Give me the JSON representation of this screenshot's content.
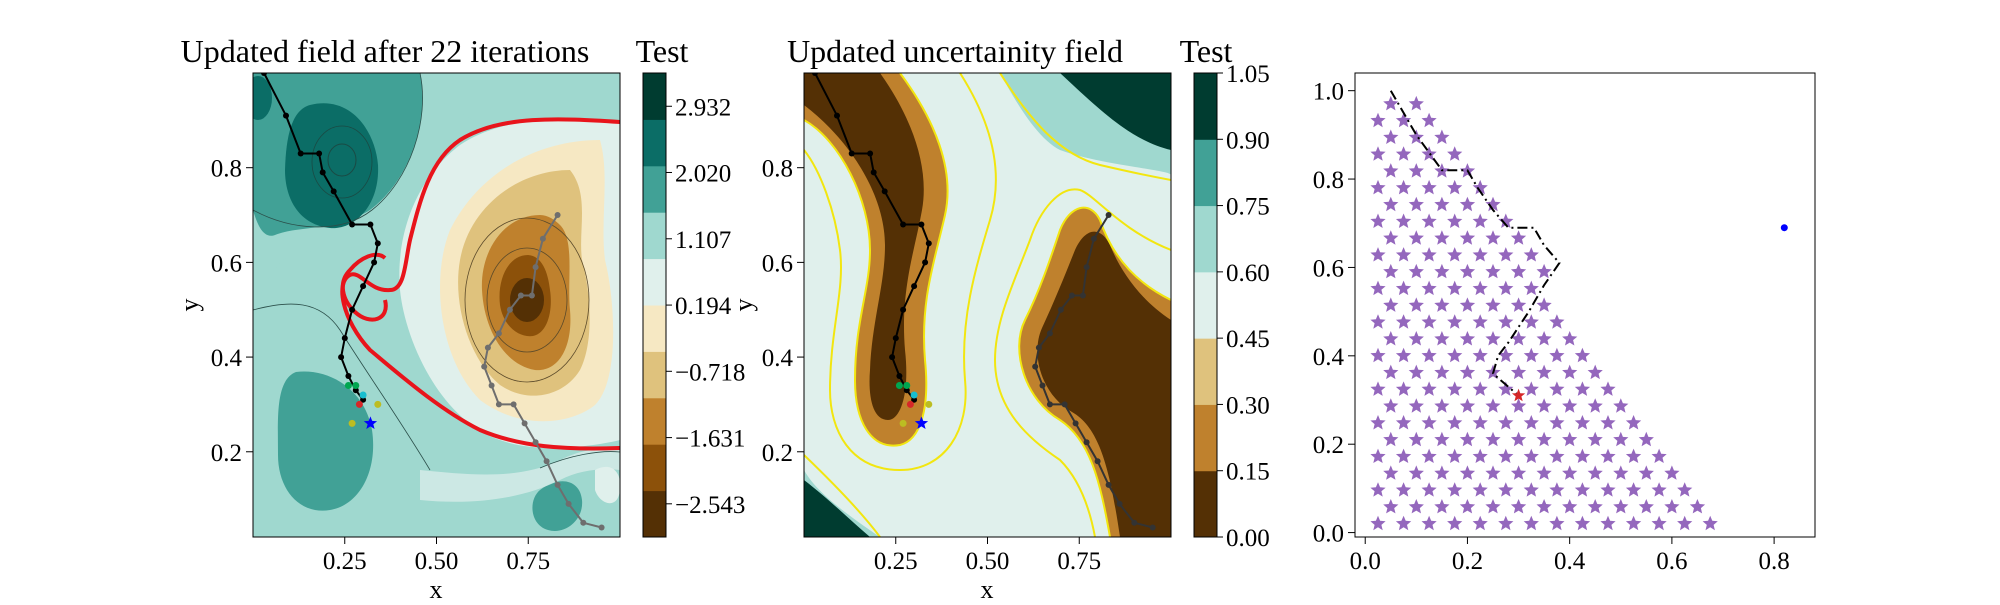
{
  "chart_data": [
    {
      "type": "contour",
      "title": "Updated field after 22 iterations",
      "xlabel": "x",
      "ylabel": "y",
      "xticks": [
        "0.25",
        "0.50",
        "0.75"
      ],
      "yticks": [
        "0.2",
        "0.4",
        "0.6",
        "0.8"
      ],
      "xlim": [
        0.0,
        1.0
      ],
      "ylim": [
        0.02,
        1.0
      ],
      "colormap": "BrBG",
      "zero_contour_color": "#e8141b",
      "colorbar": {
        "title": "Test",
        "ticks": [
          "2.932",
          "2.020",
          "1.107",
          "0.194",
          "−0.718",
          "−1.631",
          "−2.543"
        ],
        "tick_values": [
          2.932,
          2.02,
          1.107,
          0.194,
          -0.718,
          -1.631,
          -2.543
        ],
        "range": [
          -3.0,
          3.39
        ],
        "colors": [
          "#543005",
          "#8c510a",
          "#bf812d",
          "#dfc27d",
          "#f6e8c3",
          "#e0f0ec",
          "#9fd8cf",
          "#41a196",
          "#0b6d66",
          "#003c30"
        ]
      },
      "paths": [
        {
          "color": "#000000",
          "points": [
            [
              0.03,
              1.0
            ],
            [
              0.09,
              0.91
            ],
            [
              0.13,
              0.83
            ],
            [
              0.18,
              0.83
            ],
            [
              0.19,
              0.79
            ],
            [
              0.22,
              0.75
            ],
            [
              0.27,
              0.68
            ],
            [
              0.32,
              0.68
            ],
            [
              0.34,
              0.64
            ],
            [
              0.33,
              0.6
            ],
            [
              0.3,
              0.55
            ],
            [
              0.27,
              0.5
            ],
            [
              0.25,
              0.44
            ],
            [
              0.24,
              0.4
            ],
            [
              0.26,
              0.36
            ],
            [
              0.28,
              0.33
            ],
            [
              0.3,
              0.31
            ]
          ]
        },
        {
          "color": "#6e6e6e",
          "points": [
            [
              0.83,
              0.7
            ],
            [
              0.79,
              0.65
            ],
            [
              0.77,
              0.59
            ],
            [
              0.76,
              0.53
            ],
            [
              0.73,
              0.53
            ],
            [
              0.7,
              0.5
            ],
            [
              0.67,
              0.45
            ],
            [
              0.64,
              0.42
            ],
            [
              0.63,
              0.38
            ],
            [
              0.65,
              0.34
            ],
            [
              0.67,
              0.3
            ],
            [
              0.71,
              0.3
            ],
            [
              0.74,
              0.26
            ],
            [
              0.77,
              0.22
            ],
            [
              0.8,
              0.18
            ],
            [
              0.83,
              0.13
            ],
            [
              0.86,
              0.09
            ],
            [
              0.9,
              0.05
            ],
            [
              0.95,
              0.04
            ]
          ]
        }
      ],
      "markers": [
        {
          "x": 0.26,
          "y": 0.34,
          "color": "#00a650",
          "shape": "dot"
        },
        {
          "x": 0.28,
          "y": 0.34,
          "color": "#00a650",
          "shape": "dot"
        },
        {
          "x": 0.3,
          "y": 0.32,
          "color": "#17becf",
          "shape": "dot"
        },
        {
          "x": 0.29,
          "y": 0.3,
          "color": "#d62728",
          "shape": "dot"
        },
        {
          "x": 0.34,
          "y": 0.3,
          "color": "#bcbd22",
          "shape": "dot"
        },
        {
          "x": 0.27,
          "y": 0.26,
          "color": "#bcbd22",
          "shape": "dot"
        },
        {
          "x": 0.32,
          "y": 0.26,
          "color": "#0000ff",
          "shape": "star"
        }
      ]
    },
    {
      "type": "contour",
      "title": "Updated uncertainity field",
      "xlabel": "x",
      "ylabel": "y",
      "xticks": [
        "0.25",
        "0.50",
        "0.75"
      ],
      "yticks": [
        "0.2",
        "0.4",
        "0.6",
        "0.8"
      ],
      "xlim": [
        0.0,
        1.0
      ],
      "ylim": [
        0.02,
        1.0
      ],
      "colormap": "BrBG",
      "contour_line_color": "#f2e610",
      "colorbar": {
        "title": "Test",
        "ticks": [
          "1.05",
          "0.90",
          "0.75",
          "0.60",
          "0.45",
          "0.30",
          "0.15",
          "0.00"
        ],
        "tick_values": [
          1.05,
          0.9,
          0.75,
          0.6,
          0.45,
          0.3,
          0.15,
          0.0
        ],
        "range": [
          0.0,
          1.05
        ],
        "colors": [
          "#543005",
          "#bf812d",
          "#dfc27d",
          "#e0f0ec",
          "#9fd8cf",
          "#41a196",
          "#003c30"
        ]
      },
      "paths": [
        {
          "color": "#000000",
          "points": [
            [
              0.03,
              1.0
            ],
            [
              0.09,
              0.91
            ],
            [
              0.13,
              0.83
            ],
            [
              0.18,
              0.83
            ],
            [
              0.19,
              0.79
            ],
            [
              0.22,
              0.75
            ],
            [
              0.27,
              0.68
            ],
            [
              0.32,
              0.68
            ],
            [
              0.34,
              0.64
            ],
            [
              0.33,
              0.6
            ],
            [
              0.3,
              0.55
            ],
            [
              0.27,
              0.5
            ],
            [
              0.25,
              0.44
            ],
            [
              0.24,
              0.4
            ],
            [
              0.26,
              0.36
            ],
            [
              0.28,
              0.33
            ],
            [
              0.3,
              0.31
            ]
          ]
        },
        {
          "color": "#333333",
          "points": [
            [
              0.83,
              0.7
            ],
            [
              0.79,
              0.65
            ],
            [
              0.77,
              0.59
            ],
            [
              0.76,
              0.53
            ],
            [
              0.73,
              0.53
            ],
            [
              0.7,
              0.5
            ],
            [
              0.67,
              0.45
            ],
            [
              0.64,
              0.42
            ],
            [
              0.63,
              0.38
            ],
            [
              0.65,
              0.34
            ],
            [
              0.67,
              0.3
            ],
            [
              0.71,
              0.3
            ],
            [
              0.74,
              0.26
            ],
            [
              0.77,
              0.22
            ],
            [
              0.8,
              0.18
            ],
            [
              0.83,
              0.13
            ],
            [
              0.86,
              0.09
            ],
            [
              0.9,
              0.05
            ],
            [
              0.95,
              0.04
            ]
          ]
        }
      ],
      "markers": [
        {
          "x": 0.26,
          "y": 0.34,
          "color": "#00a650",
          "shape": "dot"
        },
        {
          "x": 0.28,
          "y": 0.34,
          "color": "#00a650",
          "shape": "dot"
        },
        {
          "x": 0.3,
          "y": 0.32,
          "color": "#17becf",
          "shape": "dot"
        },
        {
          "x": 0.29,
          "y": 0.3,
          "color": "#d62728",
          "shape": "dot"
        },
        {
          "x": 0.34,
          "y": 0.3,
          "color": "#bcbd22",
          "shape": "dot"
        },
        {
          "x": 0.27,
          "y": 0.26,
          "color": "#bcbd22",
          "shape": "dot"
        },
        {
          "x": 0.32,
          "y": 0.26,
          "color": "#0000ff",
          "shape": "star"
        }
      ]
    },
    {
      "type": "scatter",
      "title": "",
      "xlabel": "",
      "ylabel": "",
      "xticks": [
        "0.0",
        "0.2",
        "0.4",
        "0.6",
        "0.8"
      ],
      "yticks": [
        "0.0",
        "0.2",
        "0.4",
        "0.6",
        "0.8",
        "1.0"
      ],
      "xlim": [
        -0.02,
        0.88
      ],
      "ylim": [
        -0.01,
        1.04
      ],
      "grid_star_color": "#9467bd",
      "grid": {
        "x_start": 0.025,
        "x_step": 0.025,
        "y_start": 0.04,
        "y_step": 0.04,
        "right_edge_at_y0": 0.688,
        "right_edge_slope": -0.57
      },
      "path": {
        "color": "#000000",
        "style": "dash-dot",
        "points": [
          [
            0.05,
            1.0
          ],
          [
            0.1,
            0.9
          ],
          [
            0.15,
            0.82
          ],
          [
            0.2,
            0.82
          ],
          [
            0.22,
            0.78
          ],
          [
            0.25,
            0.73
          ],
          [
            0.28,
            0.69
          ],
          [
            0.33,
            0.69
          ],
          [
            0.35,
            0.65
          ],
          [
            0.38,
            0.61
          ],
          [
            0.35,
            0.56
          ],
          [
            0.32,
            0.5
          ],
          [
            0.28,
            0.43
          ],
          [
            0.26,
            0.4
          ],
          [
            0.25,
            0.36
          ],
          [
            0.28,
            0.33
          ],
          [
            0.3,
            0.31
          ]
        ]
      },
      "markers": [
        {
          "x": 0.3,
          "y": 0.31,
          "color": "#d62728",
          "shape": "star"
        },
        {
          "x": 0.82,
          "y": 0.69,
          "color": "#0000ff",
          "shape": "dot"
        }
      ]
    }
  ]
}
